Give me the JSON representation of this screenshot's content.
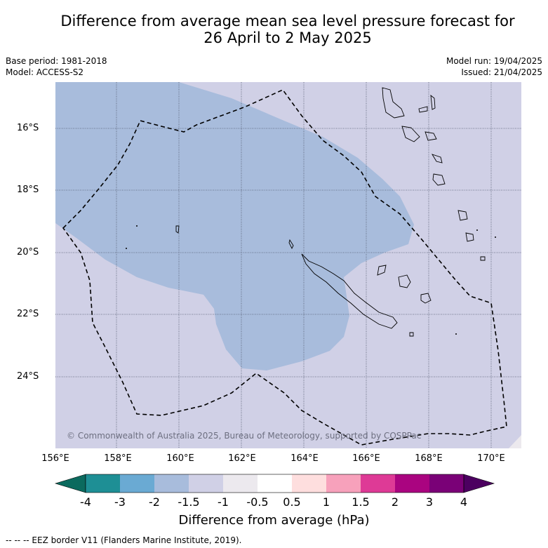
{
  "title_line1": "Difference from average mean sea level pressure forecast for",
  "title_line2": "26 April to 2 May 2025",
  "base_period": "Base period: 1981-2018",
  "model": "Model: ACCESS-S2",
  "model_run": "Model run: 19/04/2025",
  "issued": "Issued: 21/04/2025",
  "latitude_labels": [
    "16°S",
    "18°S",
    "20°S",
    "22°S",
    "24°S"
  ],
  "longitude_labels": [
    "156°E",
    "158°E",
    "160°E",
    "162°E",
    "164°E",
    "166°E",
    "168°E",
    "170°E"
  ],
  "copyright": "© Commonwealth of Australia 2025, Bureau of Meteorology, supported by COSPPac",
  "colorbar": {
    "labels": [
      "-4",
      "-3",
      "-2",
      "-1.5",
      "-1",
      "-0.5",
      "0.5",
      "1",
      "1.5",
      "2",
      "3",
      "4"
    ],
    "colors": [
      "#0b6a5e",
      "#1e8f95",
      "#6aaad3",
      "#a8bcdc",
      "#d0d0e6",
      "#ece9ee",
      "#ffffff",
      "#fedede",
      "#f7a1bb",
      "#de3a96",
      "#aa0480",
      "#7a0177",
      "#4c0060"
    ],
    "title": "Difference from average (hPa)"
  },
  "map": {
    "background_color": "#d0d0e6",
    "anomaly_color": "#a8bcdc"
  },
  "legend_note": "-- -- -- EEZ border V11 (Flanders Marine Institute, 2019)."
}
